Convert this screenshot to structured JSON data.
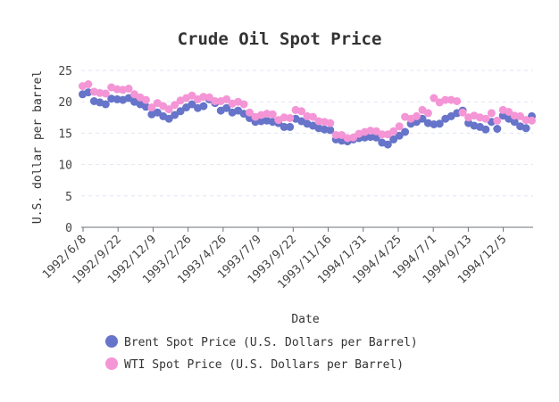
{
  "chart_data": {
    "type": "scatter",
    "title": "Crude Oil Spot Price",
    "xlabel": "Date",
    "ylabel": "U.S. dollar per barrel",
    "ylim": [
      0,
      25
    ],
    "yticks": [
      "0",
      "5",
      "10",
      "15",
      "20",
      "25"
    ],
    "xticks": [
      "1992/6/8",
      "1992/9/22",
      "1992/12/9",
      "1993/2/26",
      "1993/4/26",
      "1993/7/9",
      "1993/9/22",
      "1993/11/16",
      "1994/1/31",
      "1994/4/25",
      "1994/7/1",
      "1994/9/13",
      "1994/12/5"
    ],
    "grid": "horizontal dashed",
    "legend_position": "bottom",
    "series": [
      {
        "name": "Brent Spot Price (U.S. Dollars per Barrel)",
        "color": "#6674c9",
        "values": [
          21.2,
          21.5,
          20.1,
          19.9,
          19.6,
          20.5,
          20.4,
          20.3,
          20.6,
          20.0,
          19.6,
          19.2,
          18.0,
          18.3,
          17.7,
          17.3,
          17.9,
          18.5,
          19.1,
          19.6,
          19.0,
          19.3,
          20.4,
          19.8,
          18.6,
          19.0,
          18.3,
          18.6,
          18.1,
          17.4,
          16.8,
          16.9,
          17.0,
          16.8,
          16.6,
          16.0,
          16.0,
          17.3,
          16.9,
          16.5,
          16.2,
          15.8,
          15.6,
          15.5,
          14.0,
          13.8,
          13.7,
          14.0,
          14.2,
          14.3,
          14.4,
          14.3,
          13.5,
          13.2,
          14.0,
          14.6,
          15.2,
          16.5,
          16.8,
          17.3,
          16.6,
          16.4,
          16.5,
          17.3,
          17.7,
          18.2,
          18.6,
          16.6,
          16.2,
          16.0,
          15.6,
          16.8,
          15.7,
          17.8,
          17.3,
          16.8,
          16.1,
          15.8,
          17.7
        ]
      },
      {
        "name": "WTI Spot Price (U.S. Dollars per Barrel)",
        "color": "#f495d6",
        "values": [
          22.5,
          22.8,
          21.6,
          21.4,
          21.3,
          22.3,
          22.0,
          21.9,
          22.1,
          21.2,
          20.7,
          20.3,
          19.1,
          19.8,
          19.3,
          18.8,
          19.5,
          20.2,
          20.6,
          21.0,
          20.4,
          20.8,
          20.7,
          20.1,
          20.1,
          20.4,
          19.7,
          20.0,
          19.6,
          18.3,
          17.6,
          17.9,
          18.1,
          18.0,
          17.1,
          17.5,
          17.4,
          18.7,
          18.5,
          17.7,
          17.6,
          16.9,
          16.8,
          16.6,
          14.7,
          14.7,
          14.2,
          14.3,
          14.9,
          15.2,
          15.4,
          15.3,
          14.8,
          14.8,
          15.3,
          16.1,
          17.6,
          17.3,
          17.7,
          18.7,
          18.2,
          20.6,
          19.9,
          20.3,
          20.3,
          20.1,
          18.3,
          17.5,
          17.8,
          17.5,
          17.3,
          18.2,
          17.0,
          18.7,
          18.4,
          17.8,
          17.7,
          17.1,
          17.0
        ]
      }
    ]
  }
}
